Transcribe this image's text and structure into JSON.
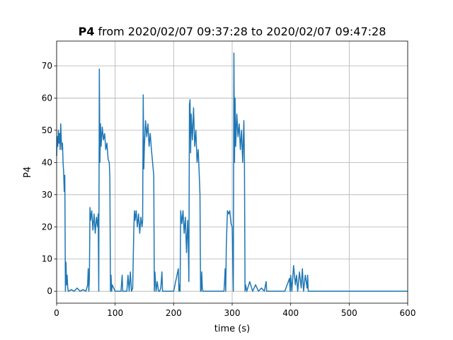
{
  "chart_data": {
    "type": "line",
    "title_name": "P4",
    "title": "from 2020/02/07 09:37:28 to 2020/02/07 09:47:28",
    "xlabel": "time (s)",
    "ylabel": "P4",
    "xlim": [
      0,
      600
    ],
    "ylim": [
      -3.7,
      77.7
    ],
    "xticks": [
      0,
      100,
      200,
      300,
      400,
      500,
      600
    ],
    "yticks": [
      0,
      10,
      20,
      30,
      40,
      50,
      60,
      70
    ],
    "grid": true,
    "x": [
      0,
      1,
      2,
      3,
      4,
      5,
      6,
      7,
      8,
      9,
      10,
      11,
      12,
      13,
      14,
      15,
      16,
      17,
      18,
      19,
      20,
      25,
      30,
      35,
      40,
      45,
      50,
      53,
      54,
      55,
      56,
      57,
      58,
      60,
      62,
      64,
      66,
      68,
      70,
      71,
      72,
      73,
      74,
      75,
      76,
      78,
      80,
      82,
      84,
      86,
      88,
      90,
      91,
      92,
      93,
      94,
      95,
      100,
      105,
      110,
      112,
      113,
      114,
      120,
      122,
      124,
      126,
      128,
      130,
      132,
      133,
      134,
      136,
      138,
      140,
      142,
      144,
      146,
      147,
      148,
      149,
      150,
      152,
      154,
      156,
      158,
      160,
      162,
      164,
      166,
      167,
      168,
      170,
      172,
      174,
      176,
      178,
      180,
      181,
      182,
      190,
      200,
      208,
      209,
      210,
      211,
      212,
      214,
      216,
      218,
      220,
      222,
      224,
      225,
      226,
      227,
      228,
      229,
      230,
      232,
      234,
      236,
      238,
      240,
      242,
      244,
      245,
      246,
      247,
      248,
      249,
      250,
      260,
      270,
      280,
      286,
      287,
      288,
      289,
      290,
      291,
      292,
      294,
      296,
      298,
      300,
      302,
      303,
      304,
      305,
      306,
      308,
      310,
      312,
      314,
      316,
      318,
      320,
      321,
      322,
      323,
      325,
      330,
      335,
      340,
      345,
      350,
      355,
      358,
      359,
      360,
      370,
      380,
      390,
      398,
      399,
      400,
      402,
      405,
      408,
      410,
      412,
      415,
      418,
      420,
      422,
      425,
      428,
      429,
      430,
      431,
      500,
      600
    ],
    "series": [
      {
        "color": "#1f77b4",
        "values": [
          42,
          48,
          45,
          50,
          46,
          49,
          44,
          52,
          47,
          44,
          46,
          40,
          37,
          31,
          36,
          0,
          9,
          2,
          5,
          1,
          0,
          0.5,
          0,
          1,
          0,
          0.5,
          0,
          2,
          7,
          0,
          4,
          26,
          22,
          25,
          19,
          24,
          18,
          23,
          20,
          24,
          0,
          69,
          40,
          52,
          45,
          51,
          47,
          49,
          44,
          46,
          41,
          40,
          35,
          0,
          5,
          0,
          2,
          0,
          0,
          0,
          5,
          0,
          0,
          0,
          5,
          0,
          6,
          0,
          1,
          20,
          25,
          22,
          25,
          20,
          24,
          18,
          23,
          20,
          22,
          61,
          38,
          45,
          53,
          48,
          52,
          45,
          49,
          44,
          40,
          36,
          0,
          6,
          0,
          3,
          0,
          0,
          1,
          6,
          0,
          0,
          0,
          0,
          7,
          0,
          2,
          0,
          25,
          21,
          25,
          18,
          23,
          12,
          22,
          15,
          3,
          58,
          59.5,
          43,
          55,
          47,
          57,
          45,
          50,
          40,
          44,
          35,
          30,
          0,
          0,
          6,
          1,
          0,
          0,
          0,
          0,
          0,
          3,
          7,
          0,
          14,
          20,
          25,
          24,
          25,
          21,
          20,
          0,
          74,
          40,
          60,
          45,
          55,
          48,
          52,
          44,
          50,
          40,
          53,
          40,
          0,
          2,
          0,
          3,
          0,
          2,
          0,
          1,
          0,
          3,
          0,
          0,
          0,
          0,
          0,
          4,
          0,
          5,
          0,
          8,
          2,
          5,
          0,
          6,
          1,
          7,
          0,
          5,
          1,
          5,
          0,
          0,
          0,
          0
        ]
      }
    ]
  }
}
